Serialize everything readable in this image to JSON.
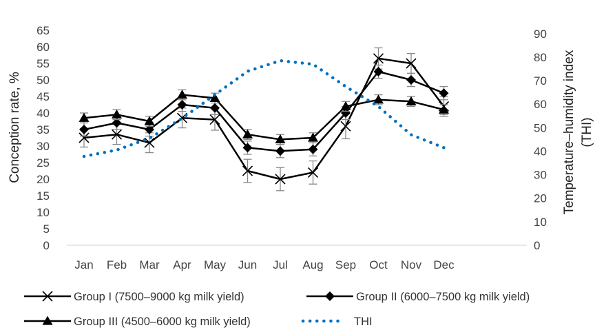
{
  "chart_data": {
    "type": "line",
    "title": "",
    "categories": [
      "Jan",
      "Feb",
      "Mar",
      "Apr",
      "May",
      "Jun",
      "Jul",
      "Aug",
      "Sep",
      "Oct",
      "Nov",
      "Dec"
    ],
    "ylabel": "Conception rate, %",
    "y2label_line1": "Temperature–humidity index",
    "y2label_line2": "(THI)",
    "ylim": [
      0,
      65
    ],
    "yticks": [
      "0",
      "5",
      "10",
      "15",
      "20",
      "25",
      "30",
      "35",
      "40",
      "45",
      "50",
      "55",
      "60",
      "65"
    ],
    "y2lim": [
      0,
      90
    ],
    "y2ticks": [
      "0",
      "10",
      "20",
      "30",
      "40",
      "50",
      "60",
      "70",
      "80",
      "90"
    ],
    "grid": false,
    "legend_position": "bottom",
    "series": [
      {
        "name": "Group I (7500–9000 kg milk yield)",
        "marker": "x",
        "axis": "left",
        "color": "#000000",
        "values": [
          32.5,
          33.5,
          31,
          38.5,
          38,
          22.5,
          20,
          22,
          36,
          56.5,
          55,
          42
        ],
        "error": [
          2.8,
          3,
          3,
          3,
          3.2,
          3.5,
          3.5,
          3.5,
          3.8,
          3.2,
          3,
          3
        ]
      },
      {
        "name": "Group II (6000–7500 kg milk yield)",
        "marker": "diamond",
        "axis": "left",
        "color": "#000000",
        "values": [
          35,
          37,
          35,
          42.5,
          41.5,
          29.5,
          28.5,
          29,
          40,
          52.5,
          50,
          46
        ],
        "error": [
          2,
          2,
          2,
          2,
          2,
          2,
          2,
          2,
          2,
          2,
          2,
          2
        ]
      },
      {
        "name": "Group III (4500–6000 kg milk yield)",
        "marker": "triangle",
        "axis": "left",
        "color": "#000000",
        "values": [
          38.5,
          39.5,
          37.5,
          45.5,
          44.5,
          33.5,
          32,
          32.5,
          42,
          44,
          43.5,
          41
        ],
        "error": [
          1.5,
          1.5,
          1.5,
          1.5,
          1.5,
          1.5,
          1.5,
          1.5,
          1.5,
          1.5,
          1.5,
          1.5
        ]
      },
      {
        "name": "THI",
        "marker": "dotted",
        "axis": "right",
        "color": "#0070C0",
        "values": [
          37.8,
          40.5,
          45.5,
          54,
          64,
          74,
          78.5,
          77,
          67.5,
          59,
          47,
          41.5
        ]
      }
    ]
  }
}
